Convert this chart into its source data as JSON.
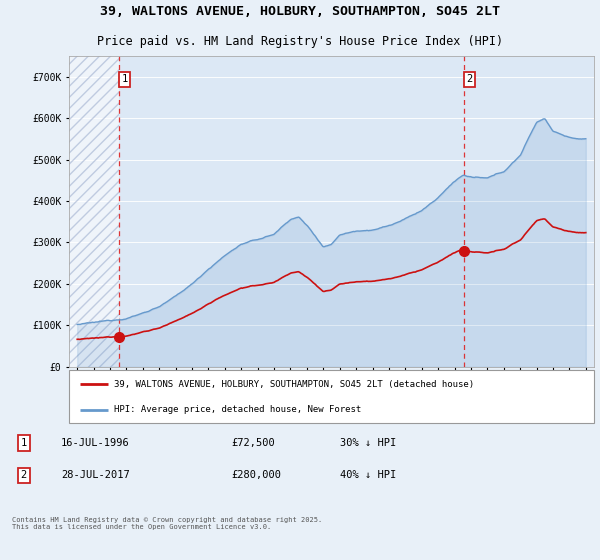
{
  "title_line1": "39, WALTONS AVENUE, HOLBURY, SOUTHAMPTON, SO45 2LT",
  "title_line2": "Price paid vs. HM Land Registry's House Price Index (HPI)",
  "background_color": "#e8f0f8",
  "plot_bg_color": "#dce8f5",
  "legend_label_red": "39, WALTONS AVENUE, HOLBURY, SOUTHAMPTON, SO45 2LT (detached house)",
  "legend_label_blue": "HPI: Average price, detached house, New Forest",
  "annotation1_label": "1",
  "annotation1_date": "16-JUL-1996",
  "annotation1_price": "£72,500",
  "annotation1_hpi": "30% ↓ HPI",
  "annotation2_label": "2",
  "annotation2_date": "28-JUL-2017",
  "annotation2_price": "£280,000",
  "annotation2_hpi": "40% ↓ HPI",
  "footer": "Contains HM Land Registry data © Crown copyright and database right 2025.\nThis data is licensed under the Open Government Licence v3.0.",
  "red_color": "#cc1111",
  "blue_color": "#6699cc",
  "dashed_line_color": "#dd2222",
  "sale1_year": 1996.54,
  "sale1_price": 72500,
  "sale2_year": 2017.57,
  "sale2_price": 280000,
  "ylim_max": 750000,
  "xlim_min": 1993.5,
  "xlim_max": 2025.5
}
